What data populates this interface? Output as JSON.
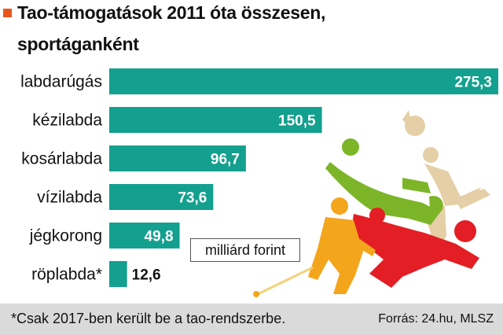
{
  "title_lines": [
    "Tao-támogatások 2011 óta összesen,",
    "sportáganként"
  ],
  "unit_label": "milliárd forint",
  "footnote": "*Csak 2017-ben került be a tao-rendszerbe.",
  "source": "Forrás: 24.hu, MLSZ",
  "colors": {
    "bar": "#14a08e",
    "title_marker": "#e8561e",
    "footer_bg": "#dadada",
    "illustration": [
      "#e5cfa6",
      "#7cb528",
      "#e31e24",
      "#f3a51b"
    ]
  },
  "illustration_icons": [
    "volleyball-player-icon",
    "football-player-icon",
    "hockey-player-icon",
    "handball-player-icon"
  ],
  "chart_data": {
    "type": "bar",
    "orientation": "horizontal",
    "title": "Tao-támogatások 2011 óta összesen, sportáganként",
    "categories": [
      "labdarúgás",
      "kézilabda",
      "kosárlabda",
      "vízilabda",
      "jégkorong",
      "röplabda*"
    ],
    "values": [
      275.3,
      150.5,
      96.7,
      73.6,
      49.8,
      12.6
    ],
    "value_labels": [
      "275,3",
      "150,5",
      "96,7",
      "73,6",
      "49,8",
      "12,6"
    ],
    "unit": "milliárd forint",
    "xlim": [
      0,
      275.3
    ],
    "grid": false,
    "legend": "none"
  }
}
